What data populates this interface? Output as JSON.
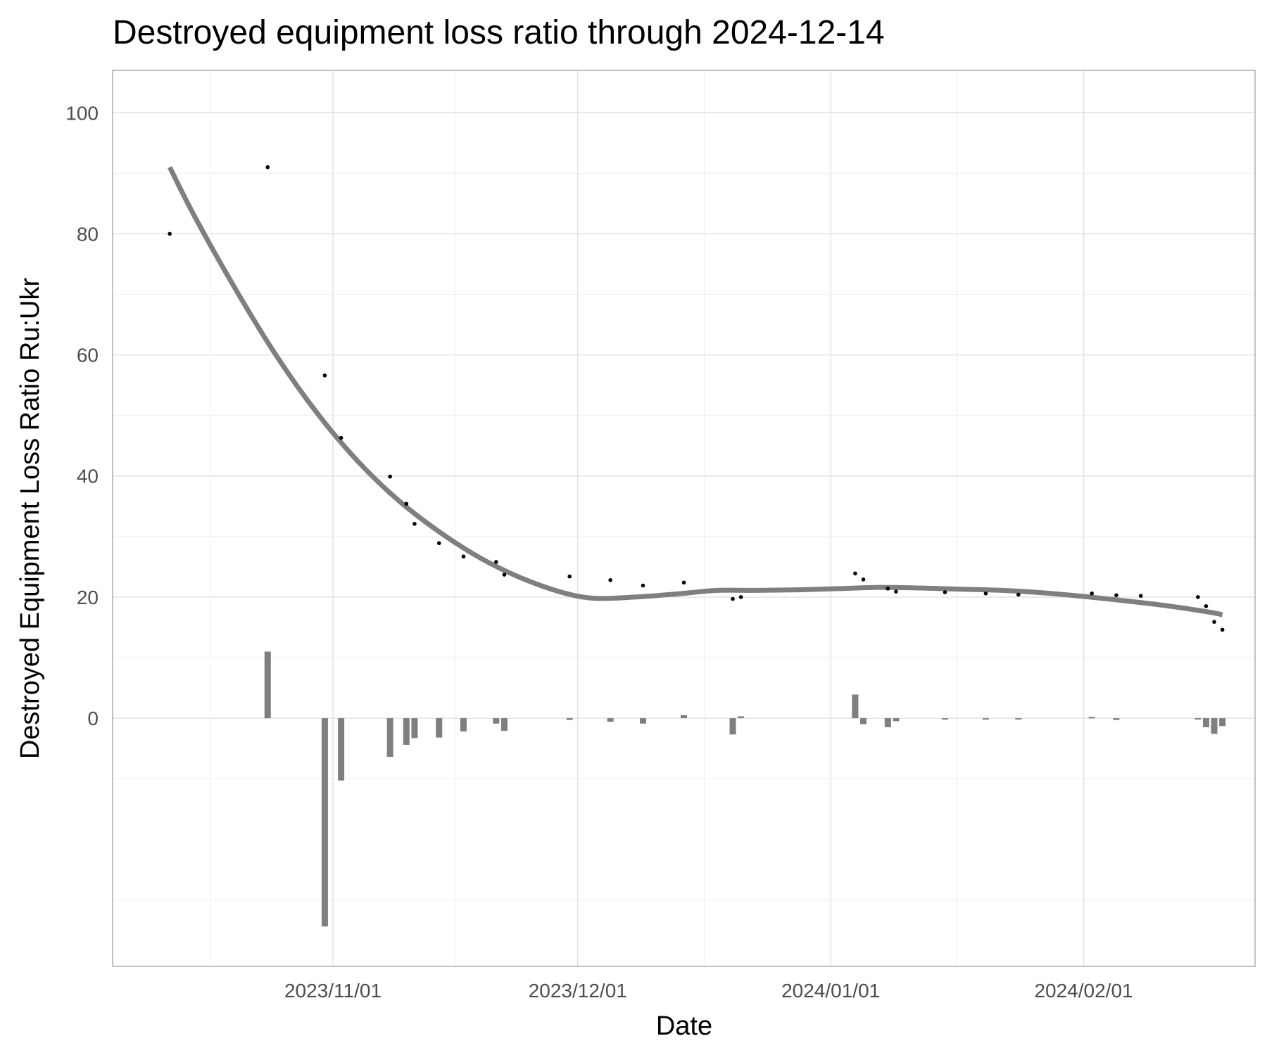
{
  "chart_data": {
    "type": "line",
    "title": "Destroyed equipment loss ratio through 2024-12-14",
    "xlabel": "Date",
    "ylabel": "Destroyed Equipment Loss Ratio Ru:Ukr",
    "xlim": [
      "2023-10-05",
      "2024-02-22"
    ],
    "ylim": [
      -41,
      107
    ],
    "x_ticks": [
      {
        "date": "2023-11-01",
        "label": "2023/11/01"
      },
      {
        "date": "2023-12-01",
        "label": "2023/12/01"
      },
      {
        "date": "2024-01-01",
        "label": "2024/01/01"
      },
      {
        "date": "2024-02-01",
        "label": "2024/02/01"
      }
    ],
    "y_ticks": [
      0,
      20,
      40,
      60,
      80,
      100
    ],
    "grid": true,
    "legend": "none",
    "series": [
      {
        "type": "scatter",
        "points": [
          {
            "x": "2023-10-12",
            "y": 80.0
          },
          {
            "x": "2023-10-24",
            "y": 91.0
          },
          {
            "x": "2023-10-31",
            "y": 56.6
          },
          {
            "x": "2023-11-02",
            "y": 46.3
          },
          {
            "x": "2023-11-08",
            "y": 39.9
          },
          {
            "x": "2023-11-10",
            "y": 35.4
          },
          {
            "x": "2023-11-11",
            "y": 32.1
          },
          {
            "x": "2023-11-14",
            "y": 28.9
          },
          {
            "x": "2023-11-17",
            "y": 26.7
          },
          {
            "x": "2023-11-21",
            "y": 25.8
          },
          {
            "x": "2023-11-22",
            "y": 23.7
          },
          {
            "x": "2023-11-30",
            "y": 23.4
          },
          {
            "x": "2023-12-05",
            "y": 22.8
          },
          {
            "x": "2023-12-09",
            "y": 21.9
          },
          {
            "x": "2023-12-14",
            "y": 22.4
          },
          {
            "x": "2023-12-20",
            "y": 19.7
          },
          {
            "x": "2023-12-21",
            "y": 20.0
          },
          {
            "x": "2024-01-04",
            "y": 23.9
          },
          {
            "x": "2024-01-05",
            "y": 22.9
          },
          {
            "x": "2024-01-08",
            "y": 21.4
          },
          {
            "x": "2024-01-09",
            "y": 20.9
          },
          {
            "x": "2024-01-15",
            "y": 20.8
          },
          {
            "x": "2024-01-20",
            "y": 20.6
          },
          {
            "x": "2024-01-24",
            "y": 20.4
          },
          {
            "x": "2024-02-02",
            "y": 20.6
          },
          {
            "x": "2024-02-05",
            "y": 20.3
          },
          {
            "x": "2024-02-08",
            "y": 20.2
          },
          {
            "x": "2024-02-15",
            "y": 20.0
          },
          {
            "x": "2024-02-16",
            "y": 18.5
          },
          {
            "x": "2024-02-17",
            "y": 15.9
          },
          {
            "x": "2024-02-18",
            "y": 14.6
          }
        ]
      },
      {
        "type": "line",
        "smoothed": true,
        "color": "#7f7f7f",
        "points": [
          {
            "x": "2023-10-12",
            "y": 91.0
          },
          {
            "x": "2023-10-15",
            "y": 83.0
          },
          {
            "x": "2023-10-20",
            "y": 71.0
          },
          {
            "x": "2023-10-25",
            "y": 60.0
          },
          {
            "x": "2023-10-30",
            "y": 50.5
          },
          {
            "x": "2023-11-04",
            "y": 42.5
          },
          {
            "x": "2023-11-09",
            "y": 36.0
          },
          {
            "x": "2023-11-14",
            "y": 30.8
          },
          {
            "x": "2023-11-19",
            "y": 26.5
          },
          {
            "x": "2023-11-24",
            "y": 23.2
          },
          {
            "x": "2023-11-29",
            "y": 20.8
          },
          {
            "x": "2023-12-03",
            "y": 19.8
          },
          {
            "x": "2023-12-08",
            "y": 20.0
          },
          {
            "x": "2023-12-13",
            "y": 20.5
          },
          {
            "x": "2023-12-18",
            "y": 21.1
          },
          {
            "x": "2023-12-23",
            "y": 21.1
          },
          {
            "x": "2023-12-28",
            "y": 21.2
          },
          {
            "x": "2024-01-02",
            "y": 21.4
          },
          {
            "x": "2024-01-07",
            "y": 21.6
          },
          {
            "x": "2024-01-12",
            "y": 21.5
          },
          {
            "x": "2024-01-17",
            "y": 21.3
          },
          {
            "x": "2024-01-22",
            "y": 21.1
          },
          {
            "x": "2024-01-27",
            "y": 20.7
          },
          {
            "x": "2024-02-01",
            "y": 20.1
          },
          {
            "x": "2024-02-06",
            "y": 19.4
          },
          {
            "x": "2024-02-11",
            "y": 18.6
          },
          {
            "x": "2024-02-16",
            "y": 17.6
          },
          {
            "x": "2024-02-18",
            "y": 17.1
          }
        ]
      },
      {
        "type": "bar",
        "color": "#7f7f7f",
        "points": [
          {
            "x": "2023-10-24",
            "y": 11.0
          },
          {
            "x": "2023-10-31",
            "y": -34.4
          },
          {
            "x": "2023-11-02",
            "y": -10.3
          },
          {
            "x": "2023-11-08",
            "y": -6.4
          },
          {
            "x": "2023-11-10",
            "y": -4.4
          },
          {
            "x": "2023-11-11",
            "y": -3.3
          },
          {
            "x": "2023-11-14",
            "y": -3.2
          },
          {
            "x": "2023-11-17",
            "y": -2.2
          },
          {
            "x": "2023-11-21",
            "y": -0.9
          },
          {
            "x": "2023-11-22",
            "y": -2.1
          },
          {
            "x": "2023-11-30",
            "y": -0.3
          },
          {
            "x": "2023-12-05",
            "y": -0.6
          },
          {
            "x": "2023-12-09",
            "y": -0.9
          },
          {
            "x": "2023-12-14",
            "y": 0.5
          },
          {
            "x": "2023-12-20",
            "y": -2.7
          },
          {
            "x": "2023-12-21",
            "y": 0.3
          },
          {
            "x": "2024-01-04",
            "y": 3.9
          },
          {
            "x": "2024-01-05",
            "y": -1.0
          },
          {
            "x": "2024-01-08",
            "y": -1.5
          },
          {
            "x": "2024-01-09",
            "y": -0.5
          },
          {
            "x": "2024-01-15",
            "y": -0.1
          },
          {
            "x": "2024-01-20",
            "y": -0.2
          },
          {
            "x": "2024-01-24",
            "y": -0.2
          },
          {
            "x": "2024-02-02",
            "y": 0.2
          },
          {
            "x": "2024-02-05",
            "y": -0.3
          },
          {
            "x": "2024-02-15",
            "y": -0.2
          },
          {
            "x": "2024-02-16",
            "y": -1.5
          },
          {
            "x": "2024-02-17",
            "y": -2.6
          },
          {
            "x": "2024-02-18",
            "y": -1.3
          }
        ]
      }
    ]
  }
}
